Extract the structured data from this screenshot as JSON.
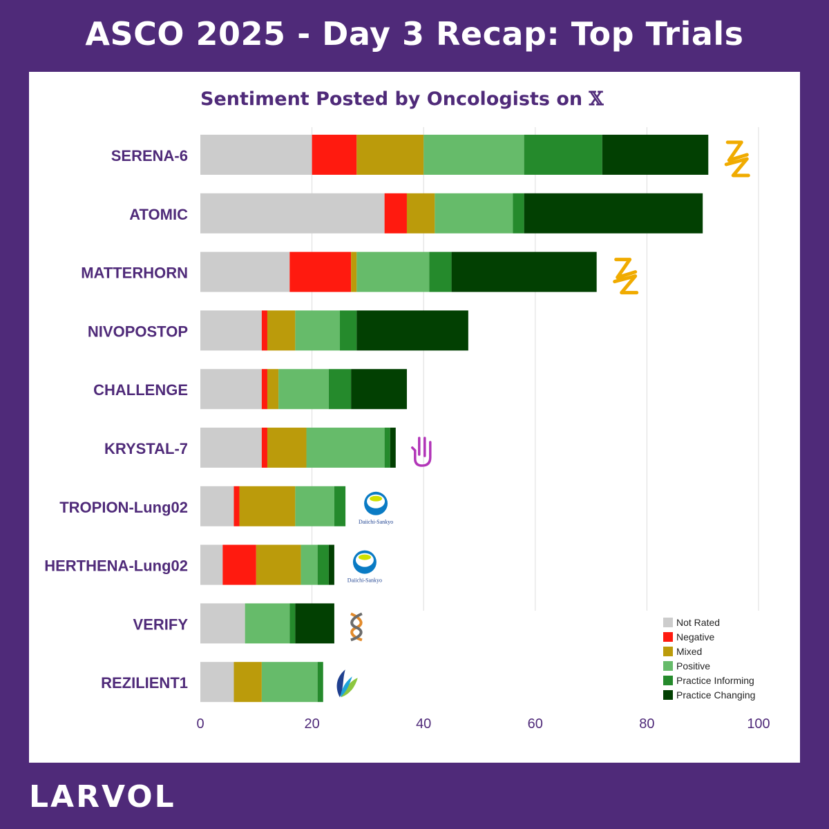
{
  "header": {
    "title": "ASCO 2025 - Day 3 Recap: Top Trials"
  },
  "subtitle": {
    "text": "Sentiment Posted by Oncologists on",
    "platform_symbol": "𝕏"
  },
  "footer": {
    "brand": "LARVOL"
  },
  "chart_data": {
    "type": "bar",
    "orientation": "horizontal",
    "stacked": true,
    "title": "Sentiment Posted by Oncologists on 𝕏",
    "categories": [
      "SERENA-6",
      "ATOMIC",
      "MATTERHORN",
      "NIVOPOSTOP",
      "CHALLENGE",
      "KRYSTAL-7",
      "TROPION-Lung02",
      "HERTHENA-Lung02",
      "VERIFY",
      "REZILIENT1"
    ],
    "series": [
      {
        "name": "Not Rated",
        "color": "#cccccc",
        "values": [
          20,
          33,
          16,
          11,
          11,
          11,
          6,
          4,
          8,
          6
        ]
      },
      {
        "name": "Negative",
        "color": "#ff1a0f",
        "values": [
          8,
          4,
          11,
          1,
          1,
          1,
          1,
          6,
          0,
          0
        ]
      },
      {
        "name": "Mixed",
        "color": "#bb9b0b",
        "values": [
          12,
          5,
          1,
          5,
          2,
          7,
          10,
          8,
          0,
          5
        ]
      },
      {
        "name": "Positive",
        "color": "#66bb6a",
        "values": [
          18,
          14,
          13,
          8,
          9,
          14,
          7,
          3,
          8,
          10
        ]
      },
      {
        "name": "Practice Informing",
        "color": "#258a2c",
        "values": [
          14,
          2,
          4,
          3,
          4,
          1,
          2,
          2,
          1,
          1
        ]
      },
      {
        "name": "Practice Changing",
        "color": "#024002",
        "values": [
          19,
          32,
          26,
          20,
          10,
          1,
          0,
          1,
          7,
          0
        ]
      }
    ],
    "xlim": [
      0,
      100
    ],
    "xticks": [
      0,
      20,
      40,
      60,
      80,
      100
    ],
    "grid": true,
    "legend_position": "bottom-right",
    "sponsor_logos": [
      "astrazeneca-logo",
      "none",
      "astrazeneca-logo",
      "none",
      "none",
      "mirati-logo",
      "daiichi-sankyo-logo",
      "daiichi-sankyo-logo",
      "helix-logo",
      "nuvalent-logo"
    ],
    "logo_text": {
      "daiichi-sankyo-logo": "Daiichi-Sankyo"
    }
  }
}
